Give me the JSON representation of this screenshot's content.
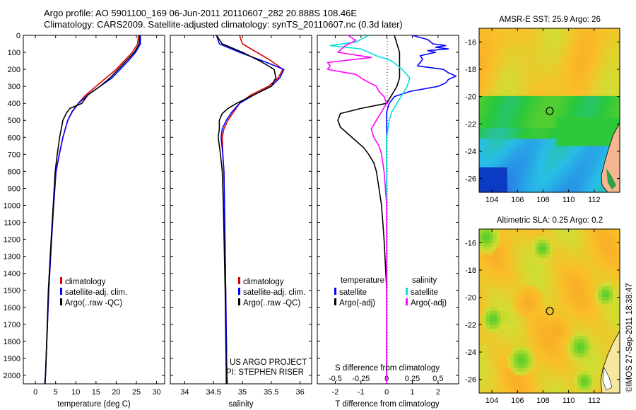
{
  "header": {
    "line1": "Argo profile: AO 5901100_169 06-Jun-2011 20110607_282 20.888S 108.46E",
    "line2": "Climatology: CARS2009. Satellite-adjusted climatology: synTS_20110607.nc (0.3d later)"
  },
  "credit": "©IMOS 27-Sep-2011 18:38:47",
  "project": {
    "line1": "US ARGO PROJECT",
    "line2": "PI: STEPHEN RISER"
  },
  "colors": {
    "climatology": "#e00000",
    "satellite": "#0000ff",
    "argo": "#000000",
    "sal_satellite": "#00e0e0",
    "sal_argo": "#ff00ff"
  },
  "depth_ticks": [
    "0",
    "100",
    "200",
    "300",
    "400",
    "500",
    "600",
    "700",
    "800",
    "900",
    "1000",
    "1100",
    "1200",
    "1300",
    "1400",
    "1500",
    "1600",
    "1700",
    "1800",
    "1900",
    "2000"
  ],
  "chart_data": [
    {
      "type": "line",
      "xlabel": "temperature (deg C)",
      "xticks": [
        "0",
        "5",
        "10",
        "15",
        "20",
        "25",
        "30"
      ],
      "xlim": [
        -3,
        32
      ],
      "ylim": [
        0,
        2050
      ],
      "legend": [
        "climatology",
        "satellite-adj. clim.",
        "Argo(..raw -QC)"
      ],
      "series": [
        {
          "name": "climatology",
          "depth": [
            0,
            50,
            100,
            150,
            200,
            250,
            300,
            350,
            400,
            450,
            500,
            600,
            700,
            800,
            1000,
            1200,
            1500,
            2000,
            2050
          ],
          "values": [
            25.5,
            25.3,
            24.0,
            22.0,
            20.0,
            17.5,
            15.0,
            12.5,
            10.6,
            9.0,
            8.0,
            6.8,
            5.9,
            5.1,
            4.5,
            4.0,
            3.3,
            2.5,
            2.3
          ]
        },
        {
          "name": "satellite-adj. clim.",
          "depth": [
            0,
            50,
            100,
            150,
            200,
            250,
            300,
            350,
            400,
            450,
            500,
            600,
            700,
            800,
            1000,
            1200,
            1500,
            2000,
            2050
          ],
          "values": [
            26.0,
            26.0,
            24.8,
            23.0,
            21.0,
            19.0,
            16.0,
            13.0,
            10.7,
            9.1,
            8.0,
            6.8,
            5.9,
            5.1,
            4.5,
            4.0,
            3.3,
            2.5,
            2.3
          ]
        },
        {
          "name": "Argo(..raw -QC)",
          "depth": [
            0,
            50,
            100,
            150,
            200,
            250,
            300,
            350,
            400,
            430,
            460,
            500,
            550,
            600,
            700,
            800,
            1000,
            1200,
            1500,
            1800,
            2000,
            2050
          ],
          "values": [
            25.8,
            25.7,
            24.5,
            22.5,
            20.5,
            18.5,
            16.0,
            13.0,
            11.5,
            8.5,
            7.6,
            6.8,
            6.4,
            6.0,
            5.4,
            4.9,
            4.4,
            3.9,
            3.2,
            2.8,
            2.5,
            2.4
          ]
        }
      ]
    },
    {
      "type": "line",
      "xlabel": "salinity",
      "xticks": [
        "34",
        "34.5",
        "35",
        "35.5",
        "36"
      ],
      "xlim": [
        33.75,
        36.2
      ],
      "ylim": [
        0,
        2050
      ],
      "legend": [
        "climatology",
        "satellite-adj. clim.",
        "Argo(..raw -QC)"
      ],
      "series": [
        {
          "name": "climatology",
          "depth": [
            0,
            50,
            100,
            150,
            200,
            250,
            300,
            350,
            400,
            450,
            500,
            550,
            600,
            700,
            800,
            1000,
            1500,
            2000,
            2050
          ],
          "values": [
            34.95,
            35.0,
            35.25,
            35.5,
            35.7,
            35.62,
            35.45,
            35.15,
            34.95,
            34.85,
            34.75,
            34.68,
            34.65,
            34.66,
            34.68,
            34.69,
            34.71,
            34.73,
            34.74
          ]
        },
        {
          "name": "satellite-adj. clim.",
          "depth": [
            0,
            50,
            100,
            150,
            200,
            250,
            300,
            350,
            400,
            450,
            500,
            550,
            600,
            700,
            800,
            1000,
            1500,
            2000,
            2050
          ],
          "values": [
            34.55,
            34.6,
            34.95,
            35.35,
            35.72,
            35.65,
            35.5,
            35.2,
            34.95,
            34.82,
            34.72,
            34.65,
            34.63,
            34.66,
            34.68,
            34.69,
            34.71,
            34.73,
            34.74
          ]
        },
        {
          "name": "Argo(..raw -QC)",
          "depth": [
            0,
            50,
            100,
            150,
            200,
            250,
            300,
            350,
            400,
            430,
            460,
            500,
            550,
            600,
            700,
            800,
            1000,
            1500,
            2000,
            2050
          ],
          "values": [
            34.55,
            34.65,
            35.0,
            35.3,
            35.55,
            35.58,
            35.5,
            35.2,
            34.9,
            34.75,
            34.65,
            34.6,
            34.6,
            34.58,
            34.62,
            34.65,
            34.67,
            34.7,
            34.72,
            34.72
          ]
        }
      ]
    },
    {
      "type": "line",
      "xlabel": "T difference from climatology",
      "xlabel2": "S difference from climatology",
      "xticks": [
        "-2",
        "-1",
        "0",
        "1",
        "2"
      ],
      "xticks_top": [
        "-0.5",
        "-0.25",
        "0",
        "0.25",
        "0.5"
      ],
      "xlim": [
        -2.7,
        2.8
      ],
      "ylim": [
        0,
        2050
      ],
      "legend_titles": [
        "temperature",
        "salinity"
      ],
      "legend": [
        "satellite",
        "Argo(-adj)",
        "satellite",
        "Argo(-adj)"
      ],
      "series": [
        {
          "name": "temperature satellite",
          "depth": [
            0,
            25,
            50,
            60,
            70,
            80,
            90,
            100,
            120,
            140,
            160,
            180,
            200,
            220,
            240,
            260,
            280,
            300,
            330,
            360,
            400,
            450,
            500,
            600,
            800,
            1000,
            1500,
            2000,
            2050
          ],
          "values": [
            1.0,
            1.6,
            1.8,
            2.3,
            1.9,
            2.4,
            1.6,
            1.9,
            1.3,
            1.4,
            1.3,
            1.2,
            2.2,
            2.4,
            2.7,
            2.4,
            2.3,
            2.0,
            0.9,
            0.3,
            0.1,
            0.0,
            0.0,
            0.0,
            0.0,
            0.0,
            0.0,
            0.0,
            0.0
          ]
        },
        {
          "name": "temperature Argo(-adj)",
          "depth": [
            0,
            50,
            100,
            150,
            200,
            250,
            300,
            350,
            400,
            430,
            460,
            500,
            540,
            580,
            620,
            660,
            700,
            750,
            800,
            900,
            1000,
            1200,
            1500,
            1800,
            2000,
            2050
          ],
          "values": [
            0.3,
            0.4,
            0.5,
            0.5,
            0.5,
            0.5,
            0.4,
            0.2,
            0.0,
            -1.0,
            -1.8,
            -1.9,
            -1.8,
            -1.5,
            -1.2,
            -0.9,
            -0.7,
            -0.5,
            -0.4,
            -0.3,
            -0.2,
            -0.1,
            0.0,
            0.0,
            0.0,
            0.0
          ]
        },
        {
          "name": "salinity satellite",
          "depth": [
            0,
            40,
            60,
            80,
            100,
            120,
            150,
            200,
            250,
            300,
            350,
            400,
            450,
            500,
            600,
            800,
            1000,
            1500,
            2000,
            2050
          ],
          "values": [
            -0.7,
            -1.2,
            -2.2,
            -1.0,
            -0.7,
            -0.4,
            0.2,
            0.6,
            0.9,
            0.8,
            0.6,
            0.4,
            0.2,
            0.1,
            0.0,
            0.0,
            0.0,
            0.0,
            0.0,
            0.0
          ]
        },
        {
          "name": "salinity Argo(-adj)",
          "depth": [
            0,
            30,
            60,
            100,
            130,
            160,
            180,
            200,
            230,
            260,
            300,
            330,
            360,
            400,
            450,
            500,
            550,
            600,
            650,
            700,
            800,
            1000,
            1500,
            2000,
            2050
          ],
          "values": [
            -1.5,
            -1.2,
            -1.6,
            -1.9,
            -0.6,
            -2.3,
            -2.2,
            -2.3,
            -1.2,
            -0.9,
            -0.4,
            -0.3,
            -0.1,
            0.0,
            -0.2,
            -0.4,
            -0.6,
            -0.5,
            -0.3,
            -0.2,
            -0.1,
            0.0,
            0.0,
            0.0,
            0.0
          ]
        }
      ]
    },
    {
      "type": "heatmap",
      "title": "AMSR-E SST: 25.9 Argo: 26",
      "xticks": [
        "104",
        "106",
        "108",
        "110",
        "112"
      ],
      "yticks": [
        "-16",
        "-18",
        "-20",
        "-22",
        "-24",
        "-26"
      ],
      "xlim": [
        103,
        114
      ],
      "ylim": [
        -27,
        -15
      ]
    },
    {
      "type": "heatmap",
      "title": "Altimetric SLA: 0.25 Argo: 0.2",
      "xticks": [
        "104",
        "106",
        "108",
        "110",
        "112"
      ],
      "yticks": [
        "-16",
        "-18",
        "-20",
        "-22",
        "-24",
        "-26"
      ],
      "xlim": [
        103,
        114
      ],
      "ylim": [
        -27,
        -15
      ]
    }
  ]
}
